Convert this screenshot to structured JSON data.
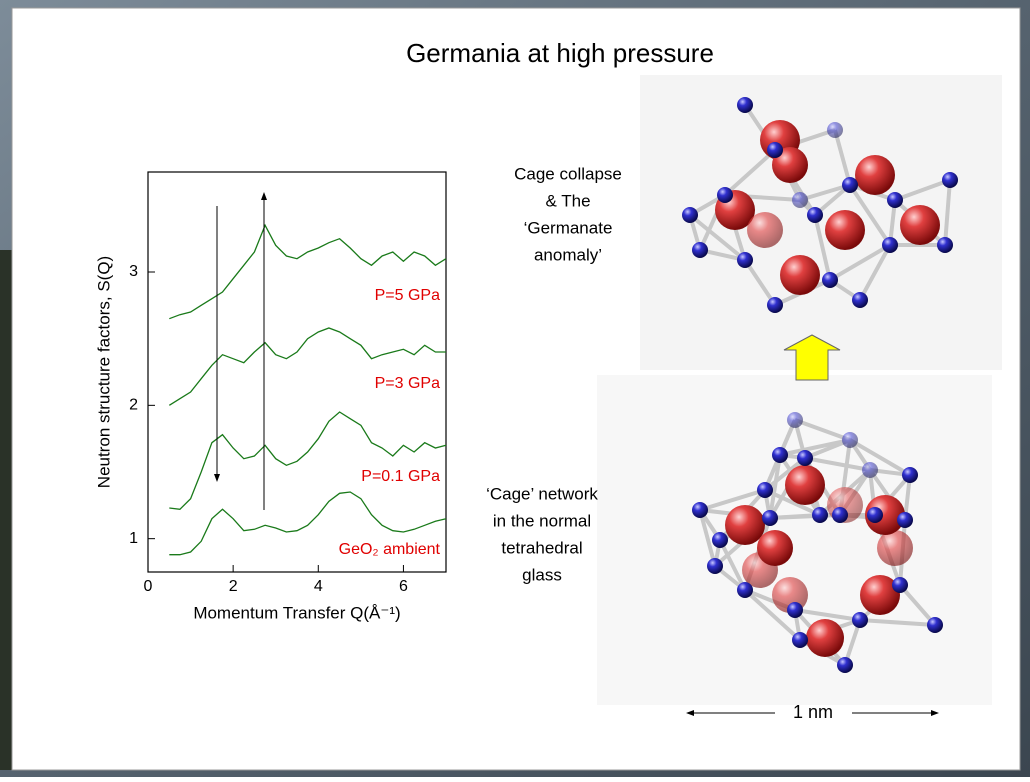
{
  "slide": {
    "title": "Germania at high pressure",
    "upper_caption": [
      "Cage collapse",
      "& The",
      "‘Germanate",
      "anomaly’"
    ],
    "lower_caption": [
      "‘Cage’ network",
      "in the normal",
      "tetrahedral",
      "glass"
    ],
    "scale_label": "1 nm"
  },
  "chart_data": {
    "type": "line",
    "x_label": "Momentum Transfer Q(Å⁻¹)",
    "y_label": "Neutron structure factors, S(Q)",
    "x": [
      0.5,
      0.75,
      1.0,
      1.25,
      1.5,
      1.75,
      2.0,
      2.25,
      2.5,
      2.75,
      3.0,
      3.25,
      3.5,
      3.75,
      4.0,
      4.25,
      4.5,
      4.75,
      5.0,
      5.25,
      5.5,
      5.75,
      6.0,
      6.25,
      6.5,
      6.75,
      7.0
    ],
    "xlim": [
      0,
      7
    ],
    "xticks": [
      0,
      2,
      4,
      6
    ],
    "ylim": [
      0.75,
      3.75
    ],
    "yticks": [
      1,
      2,
      3
    ],
    "label_color": "#e00000",
    "series": [
      {
        "name": "GeO₂ ambient",
        "color": "#1a7a1a",
        "values": [
          0.88,
          0.88,
          0.9,
          0.98,
          1.15,
          1.22,
          1.15,
          1.06,
          1.07,
          1.1,
          1.08,
          1.05,
          1.06,
          1.1,
          1.18,
          1.28,
          1.34,
          1.35,
          1.3,
          1.18,
          1.1,
          1.06,
          1.05,
          1.07,
          1.1,
          1.13,
          1.15
        ]
      },
      {
        "name": "P=0.1 GPa",
        "color": "#1a7a1a",
        "values": [
          1.23,
          1.22,
          1.3,
          1.5,
          1.72,
          1.78,
          1.68,
          1.6,
          1.62,
          1.7,
          1.6,
          1.55,
          1.58,
          1.65,
          1.75,
          1.88,
          1.95,
          1.9,
          1.85,
          1.72,
          1.68,
          1.62,
          1.7,
          1.65,
          1.72,
          1.68,
          1.7
        ]
      },
      {
        "name": "P=3 GPa",
        "color": "#1a7a1a",
        "values": [
          2.0,
          2.05,
          2.1,
          2.2,
          2.3,
          2.38,
          2.35,
          2.32,
          2.4,
          2.47,
          2.38,
          2.35,
          2.4,
          2.5,
          2.55,
          2.58,
          2.55,
          2.5,
          2.45,
          2.35,
          2.38,
          2.4,
          2.42,
          2.38,
          2.45,
          2.4,
          2.4
        ]
      },
      {
        "name": "P=5 GPa",
        "color": "#1a7a1a",
        "values": [
          2.65,
          2.68,
          2.7,
          2.75,
          2.8,
          2.85,
          2.95,
          3.05,
          3.15,
          3.35,
          3.2,
          3.12,
          3.1,
          3.15,
          3.18,
          3.22,
          3.25,
          3.18,
          3.1,
          3.05,
          3.12,
          3.15,
          3.08,
          3.15,
          3.12,
          3.05,
          3.1
        ]
      }
    ]
  }
}
